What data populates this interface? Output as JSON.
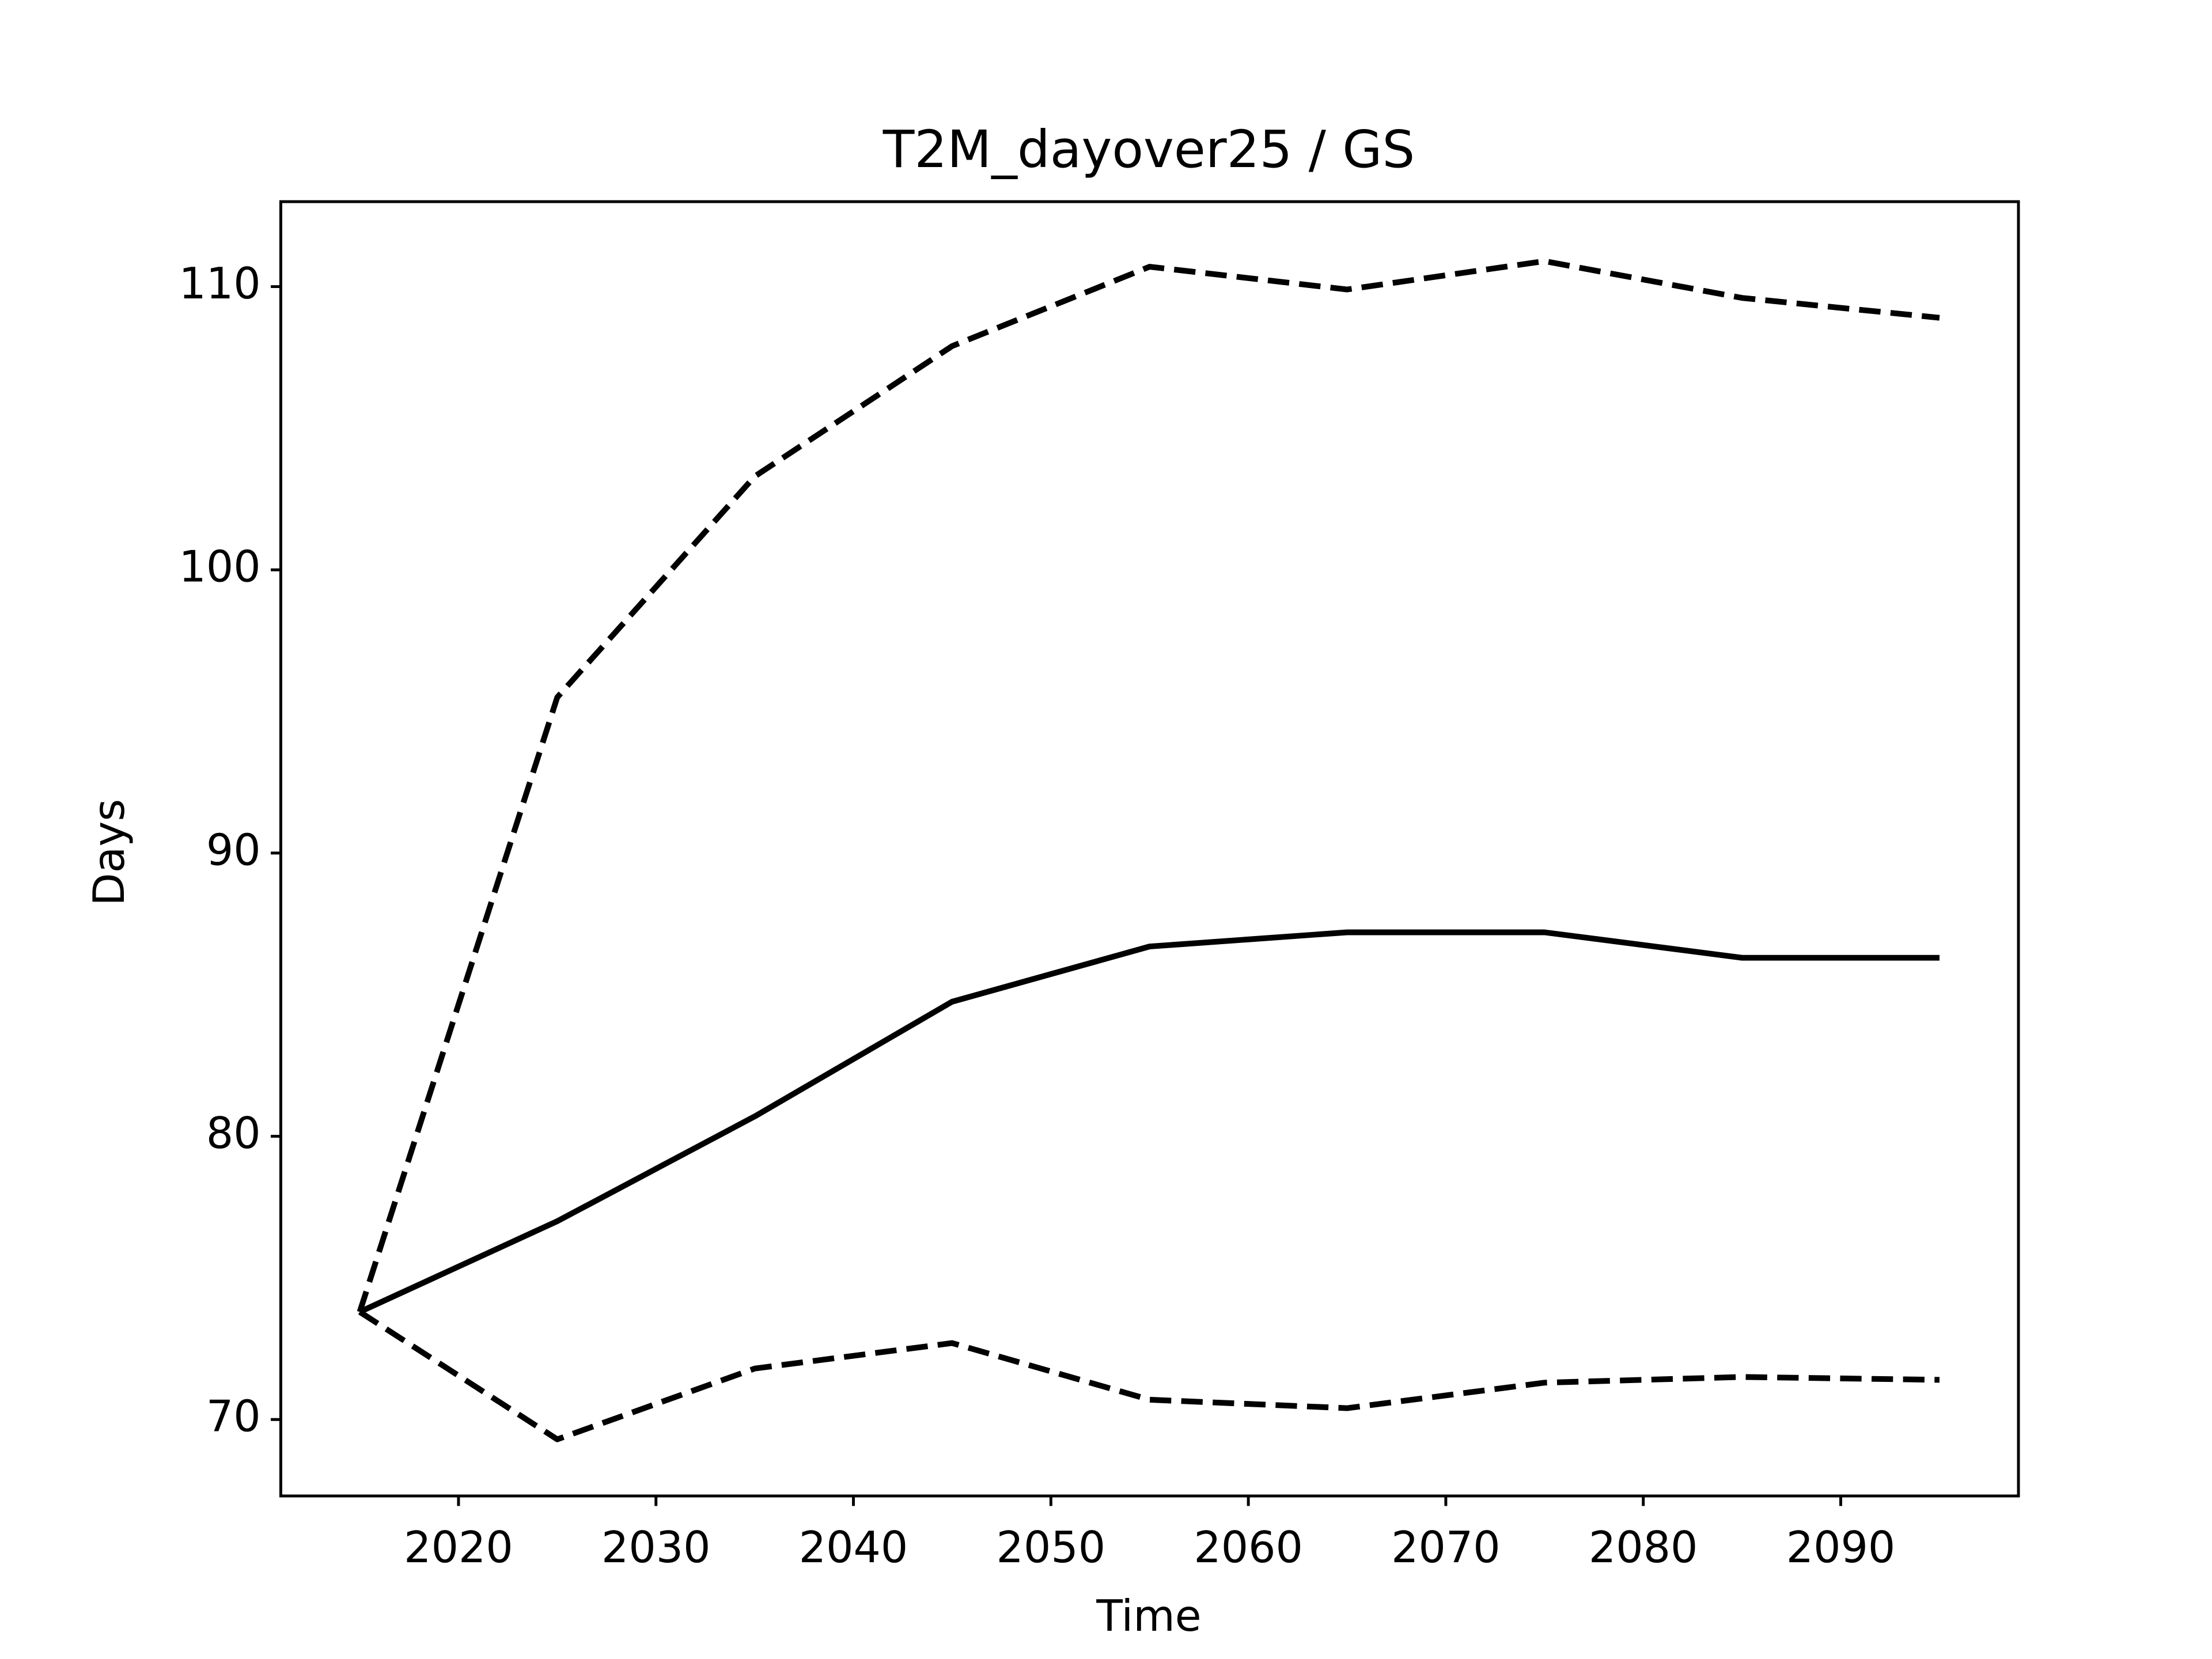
{
  "chart_data": {
    "type": "line",
    "title": "T2M_dayover25 / GS",
    "xlabel": "Time",
    "ylabel": "Days",
    "x": [
      2015,
      2025,
      2035,
      2045,
      2055,
      2065,
      2075,
      2085,
      2095
    ],
    "series": [
      {
        "color": "#000000",
        "linestyle": "solid",
        "values": [
          73.8,
          77.0,
          80.7,
          84.75,
          86.7,
          87.2,
          87.2,
          86.3,
          86.3
        ]
      },
      {
        "color": "#000000",
        "linestyle": "dashed",
        "values": [
          73.8,
          95.5,
          103.3,
          107.9,
          110.7,
          109.9,
          110.9,
          109.6,
          108.9
        ]
      },
      {
        "color": "#000000",
        "linestyle": "dashed",
        "values": [
          73.8,
          69.3,
          71.8,
          72.7,
          70.7,
          70.4,
          71.3,
          71.5,
          71.4
        ]
      }
    ],
    "xlim": [
      2011,
      2099
    ],
    "xticks": [
      2020,
      2030,
      2040,
      2050,
      2060,
      2070,
      2080,
      2090
    ],
    "ylim": [
      67.3,
      113.0
    ],
    "yticks": [
      70,
      80,
      90,
      100,
      110
    ],
    "grid": false
  }
}
